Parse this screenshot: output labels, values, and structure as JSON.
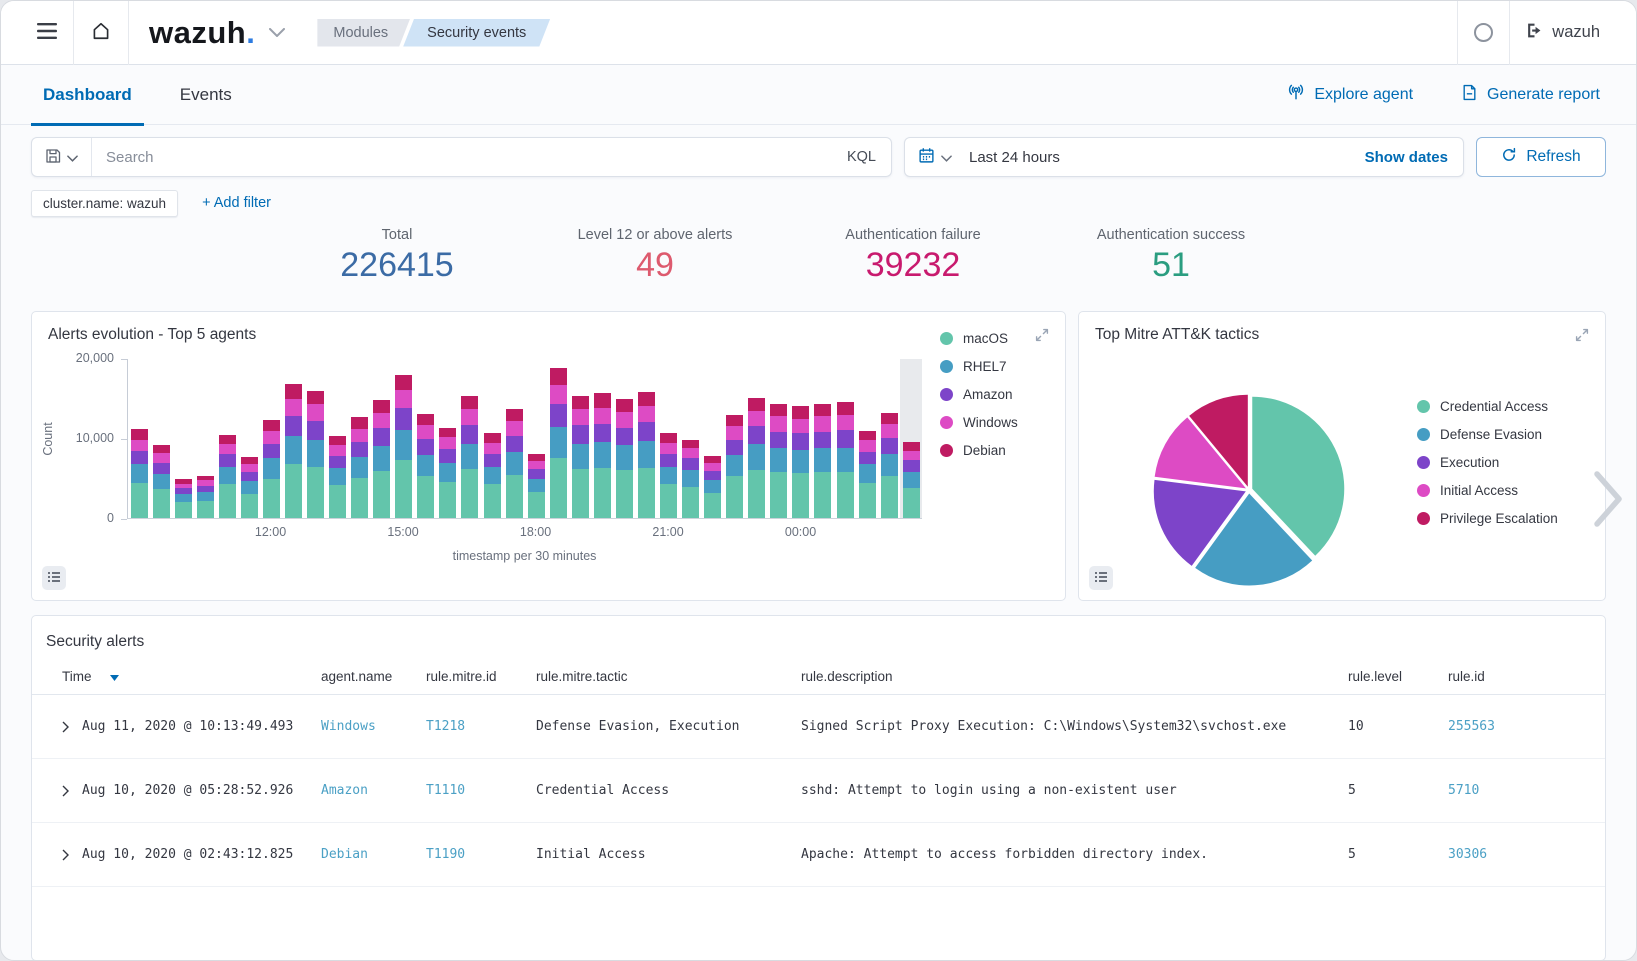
{
  "header": {
    "logo": "wazuh",
    "logo_dot": ".",
    "breadcrumbs": [
      {
        "label": "Modules"
      },
      {
        "label": "Security events"
      }
    ],
    "user": "wazuh"
  },
  "tabs": [
    {
      "label": "Dashboard",
      "active": true
    },
    {
      "label": "Events",
      "active": false
    }
  ],
  "actions": {
    "explore_agent": "Explore agent",
    "generate_report": "Generate report"
  },
  "query_bar": {
    "search_placeholder": "Search",
    "kql_label": "KQL",
    "time_range": "Last 24 hours",
    "show_dates": "Show dates",
    "refresh": "Refresh"
  },
  "filters": {
    "pill": "cluster.name: wazuh",
    "add_filter": "+ Add filter"
  },
  "stats": [
    {
      "label": "Total",
      "value": "226415",
      "color": "#3b6ba5"
    },
    {
      "label": "Level 12 or above alerts",
      "value": "49",
      "color": "#dd5a6e"
    },
    {
      "label": "Authentication failure",
      "value": "39232",
      "color": "#c81a6e"
    },
    {
      "label": "Authentication success",
      "value": "51",
      "color": "#2a9d80"
    }
  ],
  "chart_data": [
    {
      "type": "bar",
      "stacked": true,
      "title": "Alerts evolution - Top 5 agents",
      "xlabel": "timestamp per 30 minutes",
      "ylabel": "Count",
      "ylim": [
        0,
        20000
      ],
      "yticks": [
        {
          "value": 0,
          "label": "0"
        },
        {
          "value": 10000,
          "label": "10,000"
        },
        {
          "value": 20000,
          "label": "20,000"
        }
      ],
      "xticks": [
        "12:00",
        "15:00",
        "18:00",
        "21:00",
        "00:00"
      ],
      "x": [
        "09:00",
        "09:30",
        "10:00",
        "10:30",
        "11:00",
        "11:30",
        "12:00",
        "12:30",
        "13:00",
        "13:30",
        "14:00",
        "14:30",
        "15:00",
        "15:30",
        "16:00",
        "16:30",
        "17:00",
        "17:30",
        "18:00",
        "18:30",
        "19:00",
        "19:30",
        "20:00",
        "20:30",
        "21:00",
        "21:30",
        "22:00",
        "22:30",
        "23:00",
        "23:30",
        "00:00",
        "00:30",
        "01:00",
        "01:30",
        "02:00",
        "02:30"
      ],
      "values_note": "counts estimated from chart pixels",
      "series": [
        {
          "name": "macOS",
          "color": "#63c5ab",
          "values": [
            4400,
            3600,
            2000,
            2100,
            4200,
            3000,
            4900,
            6700,
            6400,
            4100,
            5000,
            5900,
            7200,
            5200,
            4500,
            6100,
            4200,
            5400,
            3200,
            7500,
            6100,
            6200,
            6000,
            6300,
            4200,
            3900,
            3100,
            5200,
            6000,
            5700,
            5600,
            5700,
            5800,
            4400,
            5200,
            3800
          ]
        },
        {
          "name": "RHEL7",
          "color": "#469dc3",
          "values": [
            2300,
            1900,
            1000,
            1100,
            2200,
            1600,
            2600,
            3500,
            3300,
            2200,
            2600,
            3100,
            3800,
            2700,
            2400,
            3200,
            2200,
            2900,
            1700,
            3900,
            3200,
            3300,
            3100,
            3300,
            2200,
            2100,
            1600,
            2700,
            3200,
            3000,
            2900,
            3000,
            3000,
            2300,
            2800,
            2000
          ]
        },
        {
          "name": "Amazon",
          "color": "#7d44c9",
          "values": [
            1700,
            1400,
            700,
            800,
            1600,
            1100,
            1800,
            2500,
            2400,
            1500,
            1900,
            2200,
            2700,
            2000,
            1700,
            2300,
            1600,
            2000,
            1200,
            2800,
            2300,
            2300,
            2200,
            2400,
            1600,
            1500,
            1200,
            1900,
            2300,
            2100,
            2100,
            2100,
            2200,
            1600,
            2000,
            1400
          ]
        },
        {
          "name": "Windows",
          "color": "#dd4bc4",
          "values": [
            1400,
            1200,
            600,
            700,
            1300,
            1000,
            1600,
            2200,
            2100,
            1300,
            1600,
            1900,
            2300,
            1700,
            1500,
            2000,
            1400,
            1800,
            1000,
            2400,
            2000,
            2000,
            1900,
            2000,
            1400,
            1300,
            1000,
            1700,
            1900,
            1900,
            1800,
            1900,
            1900,
            1400,
            1700,
            1200
          ]
        },
        {
          "name": "Debian",
          "color": "#bf1b62",
          "values": [
            1300,
            1000,
            600,
            500,
            1100,
            900,
            1400,
            1900,
            1700,
            1200,
            1500,
            1700,
            1900,
            1400,
            1100,
            1600,
            1200,
            1500,
            900,
            2200,
            1600,
            1800,
            1700,
            1700,
            1200,
            1000,
            800,
            1400,
            1600,
            1600,
            1600,
            1600,
            1600,
            1200,
            1400,
            1100
          ]
        }
      ],
      "highlight_last_bucket": true,
      "legend_position": "right",
      "grid": false
    },
    {
      "type": "pie",
      "title": "Top Mitre ATT&K tactics",
      "unit": "percent (estimated)",
      "slices": [
        {
          "label": "Credential Access",
          "value": 38,
          "color": "#63c5ab"
        },
        {
          "label": "Defense Evasion",
          "value": 22,
          "color": "#469dc3"
        },
        {
          "label": "Execution",
          "value": 17,
          "color": "#7d44c9"
        },
        {
          "label": "Initial Access",
          "value": 12,
          "color": "#dd4bc4"
        },
        {
          "label": "Privilege Escalation",
          "value": 11,
          "color": "#bf1b62"
        }
      ],
      "legend_position": "right"
    }
  ],
  "security_alerts": {
    "title": "Security alerts",
    "columns": [
      "Time",
      "agent.name",
      "rule.mitre.id",
      "rule.mitre.tactic",
      "rule.description",
      "rule.level",
      "rule.id"
    ],
    "rows": [
      {
        "time": "Aug 11, 2020 @ 10:13:49.493",
        "agent": "Windows",
        "mitre_id": "T1218",
        "tactic": "Defense Evasion, Execution",
        "description": "Signed Script Proxy Execution: C:\\Windows\\System32\\svchost.exe",
        "level": "10",
        "rule_id": "255563"
      },
      {
        "time": "Aug 10, 2020 @ 05:28:52.926",
        "agent": "Amazon",
        "mitre_id": "T1110",
        "tactic": "Credential Access",
        "description": "sshd: Attempt to login using a non-existent user",
        "level": "5",
        "rule_id": "5710"
      },
      {
        "time": "Aug 10, 2020 @ 02:43:12.825",
        "agent": "Debian",
        "mitre_id": "T1190",
        "tactic": "Initial Access",
        "description": "Apache: Attempt to access forbidden directory index.",
        "level": "5",
        "rule_id": "30306"
      }
    ]
  }
}
